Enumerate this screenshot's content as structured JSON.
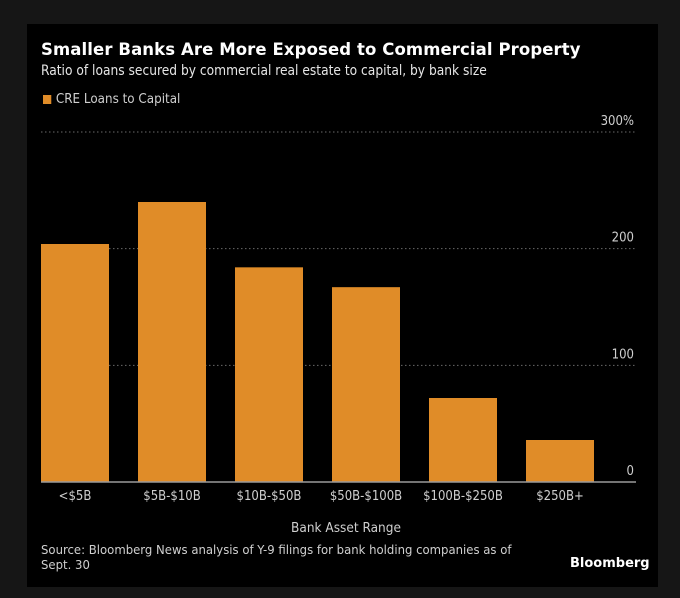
{
  "header": {
    "title": "Smaller Banks Are More Exposed to Commercial Property",
    "subtitle": "Ratio of loans secured by commercial real estate to capital, by bank size"
  },
  "legend": {
    "label": "CRE Loans to Capital",
    "color": "#E08C28"
  },
  "footer": {
    "source": "Source: Bloomberg News analysis of Y-9 filings for bank holding companies as of Sept. 30",
    "brand": "Bloomberg"
  },
  "chart_data": {
    "type": "bar",
    "title": "Smaller Banks Are More Exposed to Commercial Property",
    "subtitle": "Ratio of loans secured by commercial real estate to capital, by bank size",
    "xlabel": "Bank Asset Range",
    "ylabel": "",
    "categories": [
      "<$5B",
      "$5B-$10B",
      "$10B-$50B",
      "$50B-$100B",
      "$100B-$250B",
      "$250B+"
    ],
    "series": [
      {
        "name": "CRE Loans to Capital",
        "color": "#E08C28",
        "values": [
          204,
          240,
          184,
          167,
          72,
          36
        ]
      }
    ],
    "ylim": [
      0,
      300
    ],
    "yticks": [
      {
        "value": 0,
        "label": "0"
      },
      {
        "value": 100,
        "label": "100"
      },
      {
        "value": 200,
        "label": "200"
      },
      {
        "value": 300,
        "label": "300%"
      }
    ],
    "grid": true,
    "legend_position": "top-left",
    "yaxis_position": "right"
  }
}
